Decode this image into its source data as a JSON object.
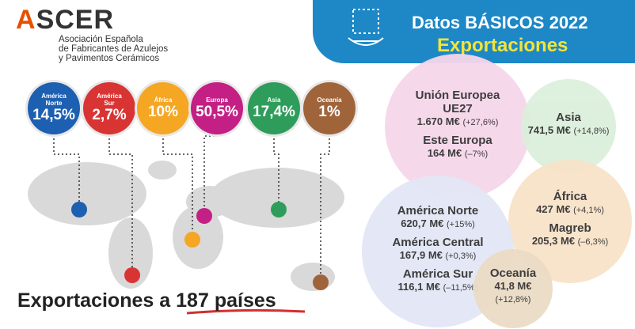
{
  "logo": {
    "name": "ASCER",
    "subtitle": [
      "Asociación Española",
      "de Fabricantes de Azulejos",
      "y Pavimentos Cerámicos"
    ]
  },
  "header": {
    "title": "Datos BÁSICOS 2022",
    "subtitle": "Exportaciones"
  },
  "regions": [
    {
      "name": "América Norte",
      "share": "14,5%",
      "color": "#1d5fb0"
    },
    {
      "name": "América Sur",
      "share": "2,7%",
      "color": "#d93434"
    },
    {
      "name": "África",
      "share": "10%",
      "color": "#f5a623"
    },
    {
      "name": "Europa",
      "share": "50,5%",
      "color": "#c41f85"
    },
    {
      "name": "Asia",
      "share": "17,4%",
      "color": "#2e9d5b"
    },
    {
      "name": "Oceanía",
      "share": "1%",
      "color": "#a0643a"
    }
  ],
  "bubbles": [
    {
      "color": "#f6d6ea",
      "entries": [
        {
          "name": "Unión Europea UE27",
          "value": "1.670 M€",
          "change": "(+27,6%)"
        },
        {
          "name": "Este Europa",
          "value": "164 M€",
          "change": "(–7%)"
        }
      ]
    },
    {
      "color": "#dcefdc",
      "entries": [
        {
          "name": "Asia",
          "value": "741,5 M€",
          "change": "(+14,8%)"
        }
      ]
    },
    {
      "color": "#f8e3c8",
      "entries": [
        {
          "name": "África",
          "value": "427 M€",
          "change": "(+4,1%)"
        },
        {
          "name": "Magreb",
          "value": "205,3 M€",
          "change": "(–6,3%)"
        }
      ]
    },
    {
      "color": "#e3e6f5",
      "entries": [
        {
          "name": "América Norte",
          "value": "620,7 M€",
          "change": "(+15%)"
        },
        {
          "name": "América Central",
          "value": "167,9 M€",
          "change": "(+0,3%)"
        },
        {
          "name": "América Sur",
          "value": "116,1 M€",
          "change": "(–11,5%)"
        }
      ]
    },
    {
      "color": "#ecdcc6",
      "entries": [
        {
          "name": "Oceanía",
          "value": "41,8 M€",
          "change": "(+12,8%)"
        }
      ]
    }
  ],
  "footer": {
    "text": "Exportaciones a",
    "count": "187",
    "suffix": "países"
  }
}
